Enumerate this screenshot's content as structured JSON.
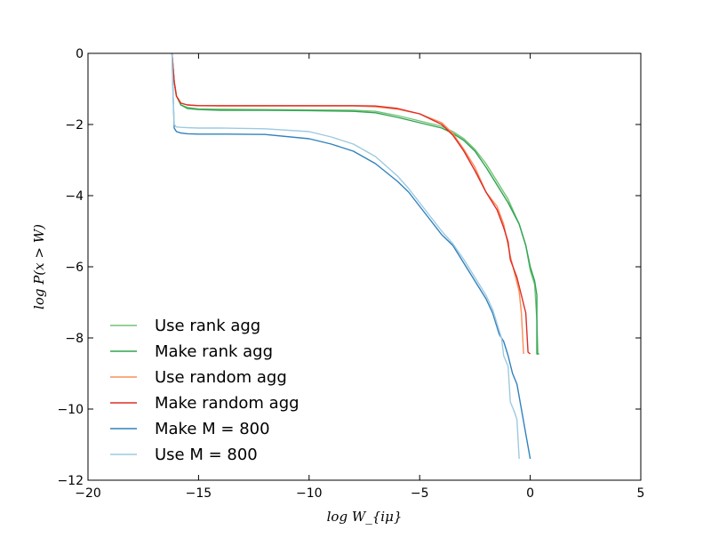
{
  "chart_data": {
    "type": "line",
    "title": "",
    "xlabel": "log W_{iμ}",
    "ylabel": "log P(x > W)",
    "xlim": [
      -20,
      5
    ],
    "ylim": [
      -12,
      0
    ],
    "xticks": [
      -20,
      -15,
      -10,
      -5,
      0,
      5
    ],
    "yticks": [
      0,
      -2,
      -4,
      -6,
      -8,
      -10,
      -12
    ],
    "xtick_labels": [
      "−20",
      "−15",
      "−10",
      "−5",
      "0",
      "5"
    ],
    "ytick_labels": [
      "0",
      "−2",
      "−4",
      "−6",
      "−8",
      "−10",
      "−12"
    ],
    "grid": false,
    "legend_position": "lower-left",
    "series": [
      {
        "name": "Use rank agg",
        "color": "#74c476",
        "x": [
          -16.2,
          -16.1,
          -16.0,
          -15.8,
          -15.5,
          -15.0,
          -14.0,
          -12.0,
          -10.0,
          -8.0,
          -7.0,
          -6.0,
          -5.0,
          -4.0,
          -3.5,
          -3.0,
          -2.5,
          -2.0,
          -1.5,
          -1.0,
          -0.5,
          -0.2,
          0.0,
          0.2,
          0.3,
          0.35
        ],
        "y": [
          0.0,
          -0.8,
          -1.2,
          -1.45,
          -1.52,
          -1.56,
          -1.57,
          -1.58,
          -1.59,
          -1.6,
          -1.63,
          -1.75,
          -1.9,
          -2.05,
          -2.2,
          -2.4,
          -2.7,
          -3.1,
          -3.6,
          -4.1,
          -4.8,
          -5.4,
          -6.1,
          -6.5,
          -7.5,
          -8.45
        ]
      },
      {
        "name": "Make rank agg",
        "color": "#31a354",
        "x": [
          -16.2,
          -16.1,
          -16.0,
          -15.8,
          -15.5,
          -15.0,
          -14.0,
          -12.0,
          -10.0,
          -8.0,
          -7.0,
          -6.0,
          -5.0,
          -4.0,
          -3.5,
          -3.0,
          -2.5,
          -2.0,
          -1.5,
          -1.0,
          -0.5,
          -0.2,
          0.0,
          0.2,
          0.3,
          0.3,
          0.4
        ],
        "y": [
          0.0,
          -0.8,
          -1.2,
          -1.45,
          -1.55,
          -1.58,
          -1.6,
          -1.6,
          -1.61,
          -1.63,
          -1.67,
          -1.8,
          -1.95,
          -2.1,
          -2.25,
          -2.45,
          -2.75,
          -3.2,
          -3.7,
          -4.2,
          -4.8,
          -5.4,
          -6.0,
          -6.4,
          -6.8,
          -8.45,
          -8.45
        ]
      },
      {
        "name": "Use random agg",
        "color": "#fc8d59",
        "x": [
          -16.2,
          -16.1,
          -16.0,
          -15.8,
          -15.5,
          -15.0,
          -14.0,
          -12.0,
          -10.0,
          -8.0,
          -7.0,
          -6.0,
          -5.0,
          -4.0,
          -3.5,
          -3.0,
          -2.5,
          -2.0,
          -1.5,
          -1.2,
          -1.0,
          -0.9,
          -0.7,
          -0.5,
          -0.4,
          -0.3
        ],
        "y": [
          0.0,
          -0.8,
          -1.2,
          -1.4,
          -1.45,
          -1.47,
          -1.48,
          -1.48,
          -1.48,
          -1.48,
          -1.5,
          -1.57,
          -1.7,
          -1.95,
          -2.25,
          -2.7,
          -3.2,
          -3.9,
          -4.3,
          -4.8,
          -5.4,
          -5.7,
          -6.2,
          -6.7,
          -7.3,
          -8.45
        ]
      },
      {
        "name": "Make random agg",
        "color": "#de2d26",
        "x": [
          -16.2,
          -16.1,
          -16.0,
          -15.8,
          -15.5,
          -15.0,
          -14.0,
          -12.0,
          -10.0,
          -8.0,
          -7.0,
          -6.0,
          -5.0,
          -4.0,
          -3.5,
          -3.0,
          -2.5,
          -2.0,
          -1.5,
          -1.2,
          -1.0,
          -0.9,
          -0.6,
          -0.4,
          -0.2,
          -0.1,
          0.0
        ],
        "y": [
          0.0,
          -0.8,
          -1.2,
          -1.4,
          -1.45,
          -1.47,
          -1.47,
          -1.47,
          -1.47,
          -1.47,
          -1.48,
          -1.55,
          -1.7,
          -2.0,
          -2.3,
          -2.75,
          -3.3,
          -3.9,
          -4.4,
          -4.9,
          -5.3,
          -5.8,
          -6.3,
          -6.8,
          -7.3,
          -8.4,
          -8.45
        ]
      },
      {
        "name": "Make M = 800",
        "color": "#3182bd",
        "x": [
          -16.2,
          -16.15,
          -16.1,
          -16.0,
          -15.8,
          -15.5,
          -15.0,
          -14.0,
          -12.0,
          -10.0,
          -9.0,
          -8.0,
          -7.0,
          -6.0,
          -5.5,
          -5.0,
          -4.5,
          -4.0,
          -3.5,
          -3.0,
          -2.5,
          -2.0,
          -1.7,
          -1.4,
          -1.2,
          -1.0,
          -0.8,
          -0.6,
          -0.4,
          -0.2,
          0.0
        ],
        "y": [
          0.0,
          -1.2,
          -2.1,
          -2.2,
          -2.24,
          -2.26,
          -2.27,
          -2.27,
          -2.28,
          -2.4,
          -2.55,
          -2.75,
          -3.1,
          -3.6,
          -3.9,
          -4.3,
          -4.7,
          -5.1,
          -5.4,
          -5.9,
          -6.4,
          -6.9,
          -7.3,
          -7.9,
          -8.1,
          -8.5,
          -9.0,
          -9.3,
          -10.0,
          -10.7,
          -11.4
        ]
      },
      {
        "name": "Use M = 800",
        "color": "#9ecae1",
        "x": [
          -16.2,
          -16.15,
          -16.1,
          -16.0,
          -15.8,
          -15.5,
          -15.0,
          -14.0,
          -12.0,
          -10.0,
          -9.0,
          -8.0,
          -7.0,
          -6.0,
          -5.5,
          -5.0,
          -4.5,
          -4.0,
          -3.5,
          -3.0,
          -2.5,
          -2.0,
          -1.7,
          -1.5,
          -1.3,
          -1.2,
          -1.0,
          -0.9,
          -0.7,
          -0.6,
          -0.5
        ],
        "y": [
          0.0,
          -1.2,
          -2.0,
          -2.07,
          -2.08,
          -2.09,
          -2.1,
          -2.1,
          -2.12,
          -2.2,
          -2.35,
          -2.55,
          -2.9,
          -3.45,
          -3.8,
          -4.2,
          -4.6,
          -5.0,
          -5.35,
          -5.8,
          -6.3,
          -6.8,
          -7.2,
          -7.6,
          -8.0,
          -8.5,
          -8.8,
          -9.8,
          -10.1,
          -10.3,
          -11.4
        ]
      }
    ]
  }
}
